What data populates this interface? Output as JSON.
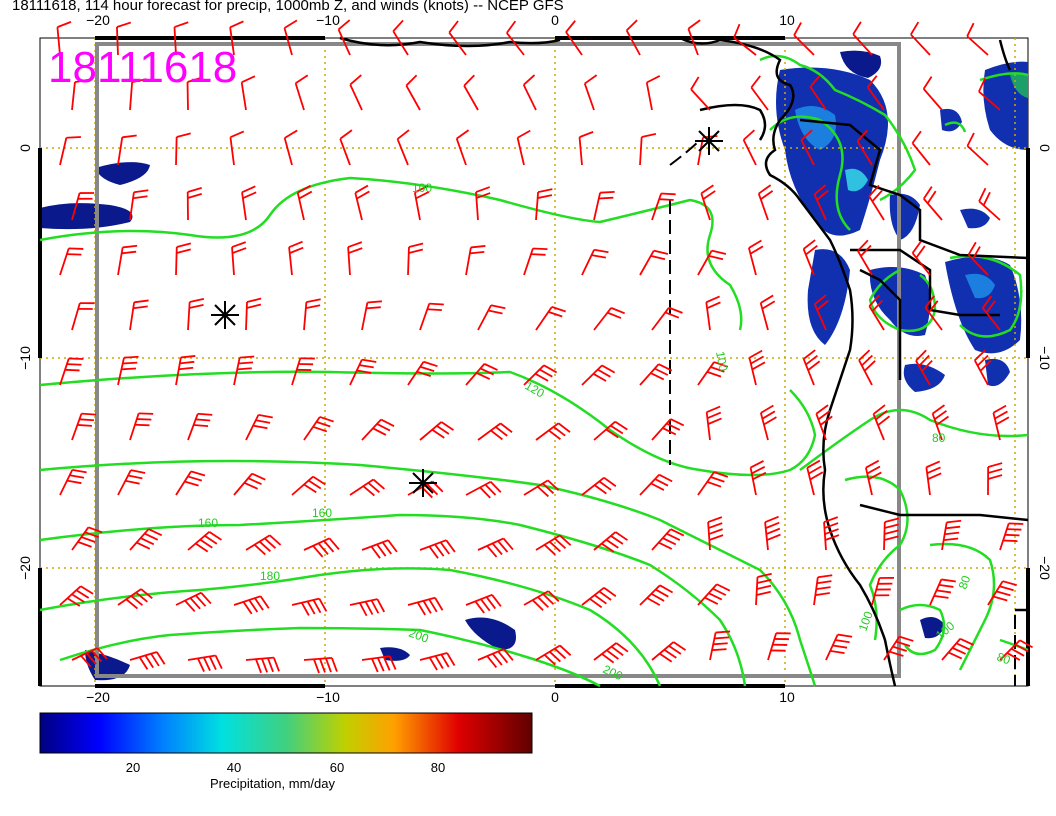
{
  "title": "18111618, 114 hour forecast for precip, 1000mb Z, and winds (knots) -- NCEP GFS",
  "stamp": "18111618",
  "lon_ticks": [
    "−20",
    "−10",
    "0",
    "10"
  ],
  "lat_ticks": [
    "0",
    "−10",
    "−20"
  ],
  "contour_labels": [
    "100",
    "100",
    "120",
    "160",
    "160",
    "180",
    "200",
    "200",
    "80",
    "100",
    "80",
    "80",
    "100"
  ],
  "colorbar": {
    "label": "Precipitation, mm/day",
    "ticks": [
      "20",
      "40",
      "60",
      "80"
    ],
    "range": [
      0,
      100
    ]
  },
  "colors": {
    "stamp": "#ff00ff",
    "contour": "#00ee00",
    "barbs": "#ff0000",
    "coast": "#000000",
    "grid": "#ccaa00",
    "box": "#888888"
  }
}
